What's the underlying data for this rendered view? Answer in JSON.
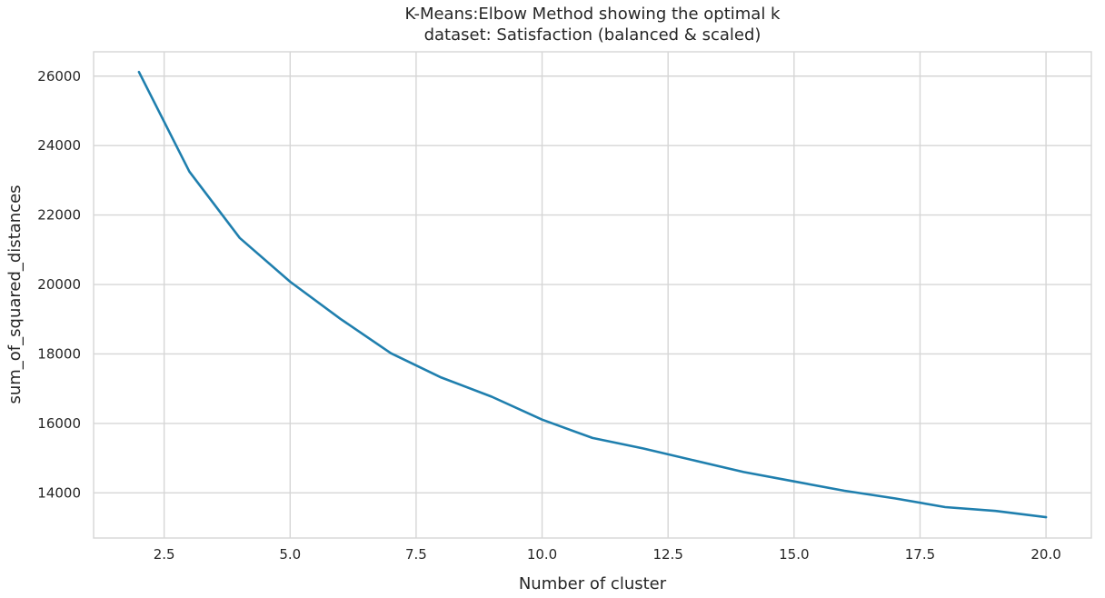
{
  "chart_data": {
    "type": "line",
    "title": "K-Means:Elbow Method showing the optimal k",
    "subtitle": "dataset: Satisfaction (balanced & scaled)",
    "xlabel": "Number of cluster",
    "ylabel": "sum_of_squared_distances",
    "xlim": [
      1.1,
      20.9
    ],
    "ylim": [
      12700,
      26700
    ],
    "xticks": [
      2.5,
      5.0,
      7.5,
      10.0,
      12.5,
      15.0,
      17.5,
      20.0
    ],
    "xtick_labels": [
      "2.5",
      "5.0",
      "7.5",
      "10.0",
      "12.5",
      "15.0",
      "17.5",
      "20.0"
    ],
    "yticks": [
      14000,
      16000,
      18000,
      20000,
      22000,
      24000,
      26000
    ],
    "ytick_labels": [
      "14000",
      "16000",
      "18000",
      "20000",
      "22000",
      "24000",
      "26000"
    ],
    "grid": true,
    "x": [
      2,
      3,
      4,
      5,
      6,
      7,
      8,
      9,
      10,
      11,
      12,
      13,
      14,
      15,
      16,
      17,
      18,
      19,
      20
    ],
    "series": [
      {
        "values": [
          26120,
          23250,
          21340,
          20080,
          19010,
          18020,
          17320,
          16770,
          16110,
          15580,
          15280,
          14940,
          14600,
          14330,
          14060,
          13840,
          13590,
          13480,
          13300
        ],
        "color": "#1f7fae"
      }
    ]
  }
}
